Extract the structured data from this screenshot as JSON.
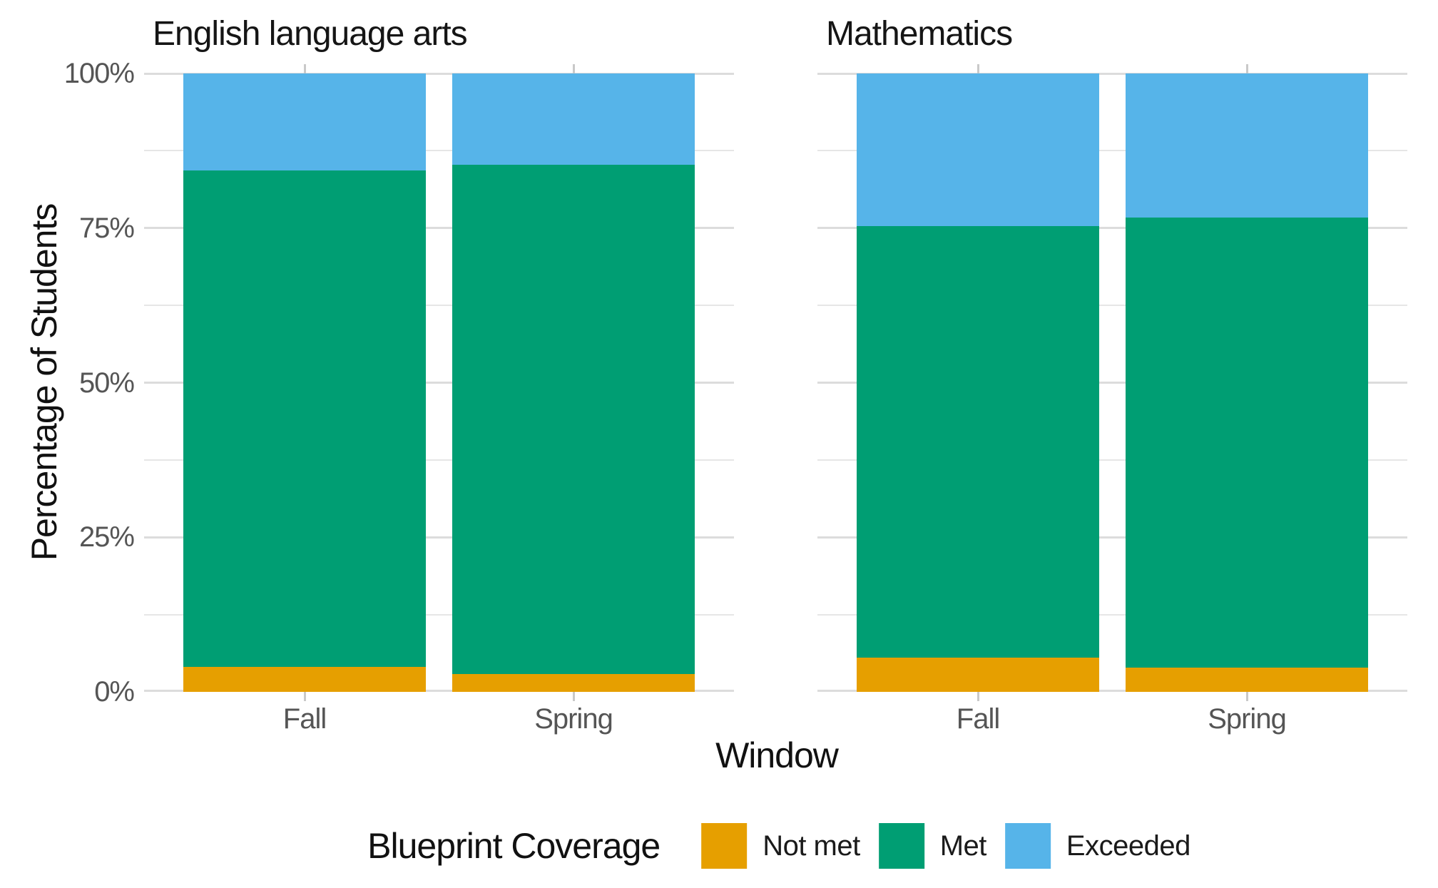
{
  "figure": {
    "y_axis": {
      "title": "Percentage of Students",
      "tick_labels": [
        "0%",
        "25%",
        "50%",
        "75%",
        "100%"
      ]
    },
    "x_axis": {
      "title": "Window",
      "categories": [
        "Fall",
        "Spring"
      ]
    },
    "legend": {
      "title": "Blueprint Coverage",
      "items": [
        {
          "label": "Not met",
          "color": "#E69F00"
        },
        {
          "label": "Met",
          "color": "#009E73"
        },
        {
          "label": "Exceeded",
          "color": "#56B4E9"
        }
      ]
    }
  },
  "chart_data": {
    "type": "bar",
    "stacked": true,
    "normalized": true,
    "units": "percent of students",
    "xlabel": "Window",
    "ylabel": "Percentage of Students",
    "ylim": [
      0,
      100
    ],
    "y_major_breaks": [
      0,
      25,
      50,
      75,
      100
    ],
    "y_minor_breaks": [
      12.5,
      37.5,
      62.5,
      87.5
    ],
    "grid": true,
    "legend_position": "bottom",
    "legend_title": "Blueprint Coverage",
    "categories": [
      "Fall",
      "Spring"
    ],
    "facets": [
      {
        "title": "English language arts",
        "series": [
          {
            "name": "Not met",
            "color": "#E69F00",
            "values": [
              4.0,
              2.9
            ]
          },
          {
            "name": "Met",
            "color": "#009E73",
            "values": [
              80.3,
              82.3
            ]
          },
          {
            "name": "Exceeded",
            "color": "#56B4E9",
            "values": [
              15.7,
              14.8
            ]
          }
        ]
      },
      {
        "title": "Mathematics",
        "series": [
          {
            "name": "Not met",
            "color": "#E69F00",
            "values": [
              5.5,
              3.9
            ]
          },
          {
            "name": "Met",
            "color": "#009E73",
            "values": [
              69.8,
              72.8
            ]
          },
          {
            "name": "Exceeded",
            "color": "#56B4E9",
            "values": [
              24.7,
              23.3
            ]
          }
        ]
      }
    ]
  }
}
